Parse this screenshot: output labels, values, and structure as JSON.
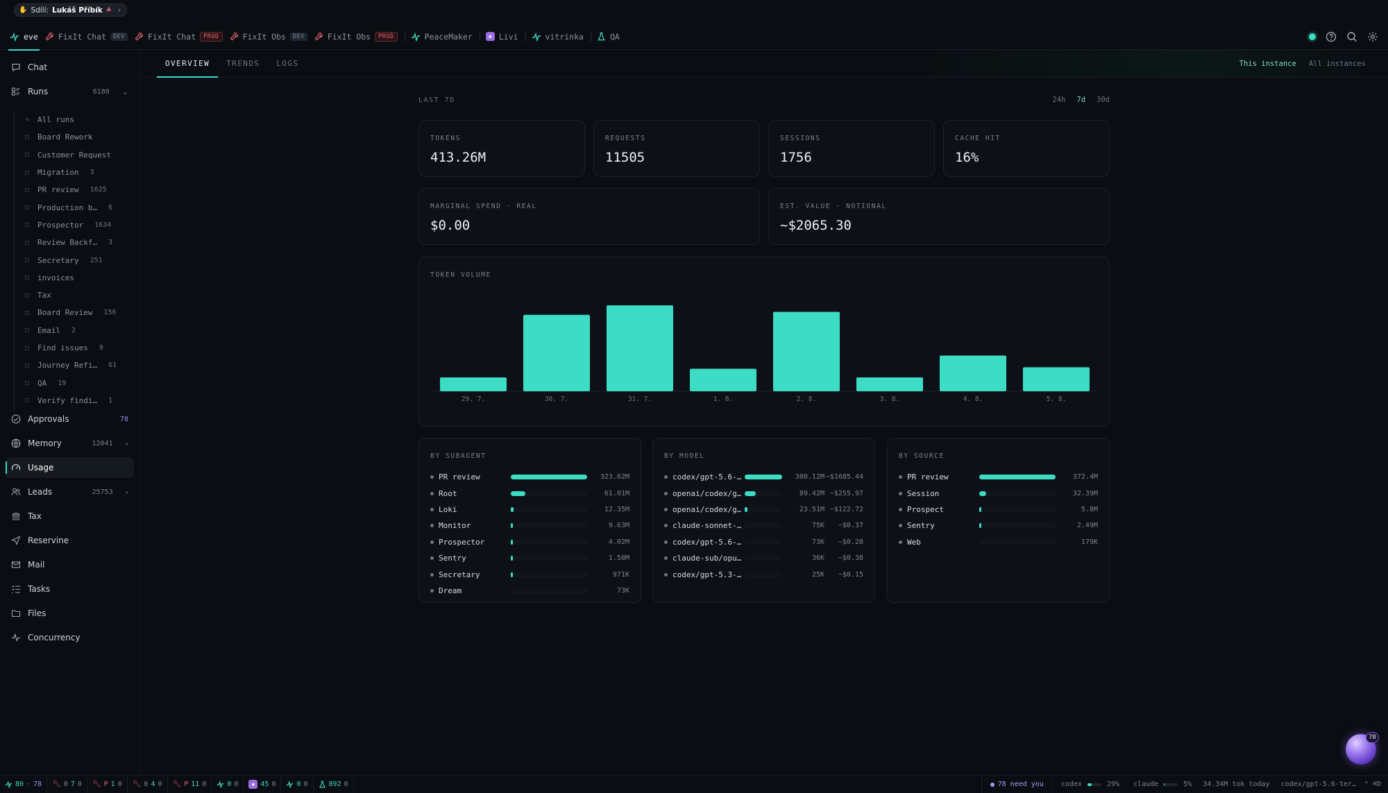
{
  "share": {
    "prefix": "Sdílí:",
    "name": "Lukáš Příbík"
  },
  "top_tabs": [
    {
      "label": "eve",
      "badge": "",
      "icon": "pulse-icon"
    },
    {
      "label": "FixIt Chat",
      "badge": "DEV",
      "icon": "wrench-icon"
    },
    {
      "label": "FixIt Chat",
      "badge": "PROD",
      "icon": "wrench-icon"
    },
    {
      "label": "FixIt Obs",
      "badge": "DEV",
      "icon": "wrench-icon"
    },
    {
      "label": "FixIt Obs",
      "badge": "PROD",
      "icon": "wrench-icon"
    },
    {
      "label": "PeaceMaker",
      "badge": "",
      "icon": "pulse-icon"
    },
    {
      "label": "Livi",
      "badge": "",
      "icon": "livi-icon"
    },
    {
      "label": "vitrinka",
      "badge": "",
      "icon": "pulse-icon"
    },
    {
      "label": "QA",
      "badge": "",
      "icon": "flask-icon"
    }
  ],
  "sidebar": {
    "chat": {
      "label": "Chat"
    },
    "runs": {
      "label": "Runs",
      "count": "6180"
    },
    "run_items": [
      {
        "label": "All runs",
        "count": ""
      },
      {
        "label": "Board Rework",
        "count": ""
      },
      {
        "label": "Customer Request",
        "count": ""
      },
      {
        "label": "Migration",
        "count": "3"
      },
      {
        "label": "PR review",
        "count": "1625"
      },
      {
        "label": "Production b…",
        "count": "6"
      },
      {
        "label": "Prospector",
        "count": "1634"
      },
      {
        "label": "Review Backf…",
        "count": "3"
      },
      {
        "label": "Secretary",
        "count": "251"
      },
      {
        "label": "invoices",
        "count": ""
      },
      {
        "label": "Tax",
        "count": ""
      },
      {
        "label": "Board Review",
        "count": "156"
      },
      {
        "label": "Email",
        "count": "2"
      },
      {
        "label": "Find issues",
        "count": "9"
      },
      {
        "label": "Journey Refi…",
        "count": "61"
      },
      {
        "label": "QA",
        "count": "19"
      },
      {
        "label": "Verify findi…",
        "count": "1"
      }
    ],
    "approvals": {
      "label": "Approvals",
      "count": "78"
    },
    "memory": {
      "label": "Memory",
      "count": "12041"
    },
    "usage": {
      "label": "Usage"
    },
    "leads": {
      "label": "Leads",
      "count": "25753"
    },
    "tax": {
      "label": "Tax"
    },
    "reservine": {
      "label": "Reservine"
    },
    "mail": {
      "label": "Mail"
    },
    "tasks": {
      "label": "Tasks"
    },
    "files": {
      "label": "Files"
    },
    "concurrency": {
      "label": "Concurrency"
    }
  },
  "main_tabs": [
    "OVERVIEW",
    "TRENDS",
    "LOGS"
  ],
  "scope": {
    "this": "This instance",
    "all": "All instances"
  },
  "range": {
    "label": "LAST 7D",
    "options": [
      "24h",
      "7d",
      "30d"
    ],
    "selected": "7d"
  },
  "stats": [
    {
      "label": "TOKENS",
      "value": "413.26M"
    },
    {
      "label": "REQUESTS",
      "value": "11505"
    },
    {
      "label": "SESSIONS",
      "value": "1756"
    },
    {
      "label": "CACHE HIT",
      "value": "16%"
    }
  ],
  "spend": [
    {
      "label": "MARGINAL SPEND · REAL",
      "value": "$0.00"
    },
    {
      "label": "EST. VALUE · NOTIONAL",
      "value": "~$2065.30"
    }
  ],
  "chart_data": {
    "type": "bar",
    "title": "TOKEN VOLUME",
    "categories": [
      "29. 7.",
      "30. 7.",
      "31. 7.",
      "1. 8.",
      "2. 8.",
      "3. 8.",
      "4. 8.",
      "5. 8."
    ],
    "values": [
      19,
      105,
      118,
      31,
      109,
      19,
      49,
      33
    ],
    "ylim": [
      0,
      120
    ],
    "grid": false,
    "color": "#3ddcc5"
  },
  "by_subagent": {
    "title": "BY SUBAGENT",
    "rows": [
      {
        "name": "PR review",
        "value": "323.62M",
        "frac": 1.0
      },
      {
        "name": "Root",
        "value": "61.01M",
        "frac": 0.19
      },
      {
        "name": "Loki",
        "value": "12.35M",
        "frac": 0.04
      },
      {
        "name": "Monitor",
        "value": "9.63M",
        "frac": 0.03
      },
      {
        "name": "Prospector",
        "value": "4.02M",
        "frac": 0.012
      },
      {
        "name": "Sentry",
        "value": "1.58M",
        "frac": 0.005
      },
      {
        "name": "Secretary",
        "value": "971K",
        "frac": 0.003
      },
      {
        "name": "Dream",
        "value": "73K",
        "frac": 0.0
      }
    ]
  },
  "by_model": {
    "title": "BY MODEL",
    "rows": [
      {
        "name": "codex/gpt-5.6-…",
        "value": "300.12M",
        "cost": "~$1685.44",
        "frac": 1.0
      },
      {
        "name": "openai/codex/g…",
        "value": "89.42M",
        "cost": "~$255.97",
        "frac": 0.3
      },
      {
        "name": "openai/codex/g…",
        "value": "23.51M",
        "cost": "~$122.72",
        "frac": 0.08
      },
      {
        "name": "claude-sonnet-…",
        "value": "75K",
        "cost": "~$0.37",
        "frac": 0.0
      },
      {
        "name": "codex/gpt-5.6-…",
        "value": "73K",
        "cost": "~$0.28",
        "frac": 0.0
      },
      {
        "name": "claude-sub/opu…",
        "value": "36K",
        "cost": "~$0.38",
        "frac": 0.0
      },
      {
        "name": "codex/gpt-5.3-…",
        "value": "25K",
        "cost": "~$0.15",
        "frac": 0.0
      }
    ]
  },
  "by_source": {
    "title": "BY SOURCE",
    "rows": [
      {
        "name": "PR review",
        "value": "372.4M",
        "frac": 1.0
      },
      {
        "name": "Session",
        "value": "32.39M",
        "frac": 0.09
      },
      {
        "name": "Prospect",
        "value": "5.8M",
        "frac": 0.016
      },
      {
        "name": "Sentry",
        "value": "2.49M",
        "frac": 0.007
      },
      {
        "name": "Web",
        "value": "179K",
        "frac": 0.0
      }
    ]
  },
  "statusbar": {
    "segments": [
      {
        "a": "80",
        "b": "78"
      },
      {
        "a": "0",
        "b": "7",
        "c": "0"
      },
      {
        "a": "P",
        "b": "1",
        "c": "0"
      },
      {
        "a": "0",
        "b": "4",
        "c": "0"
      },
      {
        "a": "P",
        "b": "11",
        "c": "0"
      },
      {
        "a": "0",
        "b": "0",
        "c": ""
      },
      {
        "a": "45",
        "b": "0",
        "c": ""
      },
      {
        "a": "0",
        "b": "0",
        "c": ""
      },
      {
        "a": "892",
        "b": "0",
        "c": ""
      }
    ],
    "need": "78 need you",
    "codex": {
      "label": "codex",
      "pct": "29%",
      "frac": 0.29
    },
    "claude": {
      "label": "claude",
      "pct": "5%",
      "frac": 0.05
    },
    "tokens_today": "34.34M tok today",
    "model": "codex/gpt-5.6-ter…",
    "shortcut": "⌃ ⌘D"
  },
  "orb": {
    "badge": "78"
  }
}
